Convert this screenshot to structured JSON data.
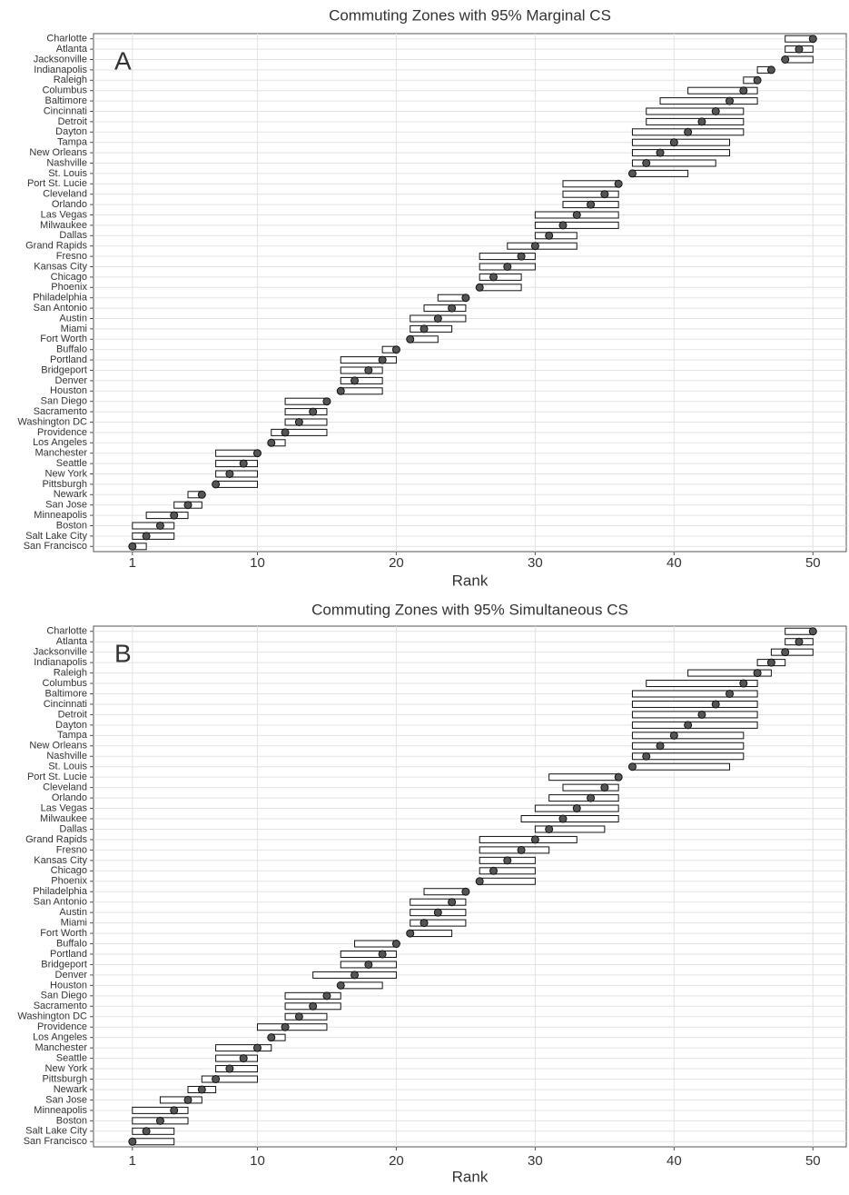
{
  "chart_data": [
    {
      "type": "interval",
      "title": "Commuting Zones with 95% Marginal CS",
      "panel_label": "A",
      "x_label": "Rank",
      "categories": [
        "Charlotte",
        "Atlanta",
        "Jacksonville",
        "Indianapolis",
        "Raleigh",
        "Columbus",
        "Baltimore",
        "Cincinnati",
        "Detroit",
        "Dayton",
        "Tampa",
        "New Orleans",
        "Nashville",
        "St. Louis",
        "Port St. Lucie",
        "Cleveland",
        "Orlando",
        "Las Vegas",
        "Milwaukee",
        "Dallas",
        "Grand Rapids",
        "Fresno",
        "Kansas City",
        "Chicago",
        "Phoenix",
        "Philadelphia",
        "San Antonio",
        "Austin",
        "Miami",
        "Fort Worth",
        "Buffalo",
        "Portland",
        "Bridgeport",
        "Denver",
        "Houston",
        "San Diego",
        "Sacramento",
        "Washington DC",
        "Providence",
        "Los Angeles",
        "Manchester",
        "Seattle",
        "New York",
        "Pittsburgh",
        "Newark",
        "San Jose",
        "Minneapolis",
        "Boston",
        "Salt Lake City",
        "San Francisco"
      ],
      "values": [
        50,
        49,
        48,
        47,
        46,
        45,
        44,
        43,
        42,
        41,
        40,
        39,
        38,
        37,
        36,
        35,
        34,
        33,
        32,
        31,
        30,
        29,
        28,
        27,
        26,
        25,
        24,
        23,
        22,
        21,
        20,
        19,
        18,
        17,
        16,
        15,
        14,
        13,
        12,
        11,
        10,
        9,
        8,
        7,
        6,
        5,
        4,
        3,
        2,
        1
      ],
      "lower": [
        48,
        48,
        48,
        46,
        45,
        41,
        39,
        38,
        38,
        37,
        37,
        37,
        37,
        37,
        32,
        32,
        32,
        30,
        30,
        30,
        28,
        26,
        26,
        26,
        26,
        23,
        22,
        21,
        21,
        21,
        19,
        16,
        16,
        16,
        16,
        12,
        12,
        12,
        11,
        11,
        7,
        7,
        7,
        7,
        5,
        4,
        2,
        1,
        1,
        1
      ],
      "upper": [
        50,
        50,
        50,
        47,
        46,
        46,
        46,
        45,
        45,
        45,
        44,
        44,
        43,
        41,
        36,
        36,
        36,
        36,
        36,
        33,
        33,
        30,
        30,
        29,
        29,
        25,
        25,
        25,
        24,
        23,
        20,
        20,
        19,
        19,
        19,
        15,
        15,
        15,
        15,
        12,
        10,
        10,
        10,
        10,
        6,
        6,
        5,
        4,
        4,
        2
      ],
      "xlim": [
        -1.8,
        52.4
      ],
      "xticks": [
        1,
        10,
        20,
        30,
        40,
        50
      ],
      "grid": true,
      "bar_color": "#ffffff",
      "point_color": "#555555"
    },
    {
      "type": "interval",
      "title": "Commuting Zones with 95% Simultaneous CS",
      "panel_label": "B",
      "x_label": "Rank",
      "categories": [
        "Charlotte",
        "Atlanta",
        "Jacksonville",
        "Indianapolis",
        "Raleigh",
        "Columbus",
        "Baltimore",
        "Cincinnati",
        "Detroit",
        "Dayton",
        "Tampa",
        "New Orleans",
        "Nashville",
        "St. Louis",
        "Port St. Lucie",
        "Cleveland",
        "Orlando",
        "Las Vegas",
        "Milwaukee",
        "Dallas",
        "Grand Rapids",
        "Fresno",
        "Kansas City",
        "Chicago",
        "Phoenix",
        "Philadelphia",
        "San Antonio",
        "Austin",
        "Miami",
        "Fort Worth",
        "Buffalo",
        "Portland",
        "Bridgeport",
        "Denver",
        "Houston",
        "San Diego",
        "Sacramento",
        "Washington DC",
        "Providence",
        "Los Angeles",
        "Manchester",
        "Seattle",
        "New York",
        "Pittsburgh",
        "Newark",
        "San Jose",
        "Minneapolis",
        "Boston",
        "Salt Lake City",
        "San Francisco"
      ],
      "values": [
        50,
        49,
        48,
        47,
        46,
        45,
        44,
        43,
        42,
        41,
        40,
        39,
        38,
        37,
        36,
        35,
        34,
        33,
        32,
        31,
        30,
        29,
        28,
        27,
        26,
        25,
        24,
        23,
        22,
        21,
        20,
        19,
        18,
        17,
        16,
        15,
        14,
        13,
        12,
        11,
        10,
        9,
        8,
        7,
        6,
        5,
        4,
        3,
        2,
        1
      ],
      "lower": [
        48,
        48,
        47,
        46,
        41,
        38,
        37,
        37,
        37,
        37,
        37,
        37,
        37,
        37,
        31,
        32,
        31,
        30,
        29,
        30,
        26,
        26,
        26,
        26,
        26,
        22,
        21,
        21,
        21,
        21,
        17,
        16,
        16,
        14,
        16,
        12,
        12,
        12,
        10,
        11,
        7,
        7,
        7,
        6,
        5,
        3,
        1,
        1,
        1,
        1
      ],
      "upper": [
        50,
        50,
        50,
        48,
        47,
        46,
        46,
        46,
        46,
        46,
        45,
        45,
        45,
        44,
        36,
        36,
        36,
        36,
        36,
        35,
        33,
        31,
        30,
        30,
        30,
        25,
        25,
        25,
        25,
        24,
        20,
        20,
        20,
        20,
        19,
        16,
        16,
        15,
        15,
        12,
        11,
        10,
        10,
        10,
        7,
        6,
        5,
        5,
        4,
        4
      ],
      "xlim": [
        -1.8,
        52.4
      ],
      "xticks": [
        1,
        10,
        20,
        30,
        40,
        50
      ],
      "grid": true,
      "bar_color": "#ffffff",
      "point_color": "#555555"
    }
  ]
}
